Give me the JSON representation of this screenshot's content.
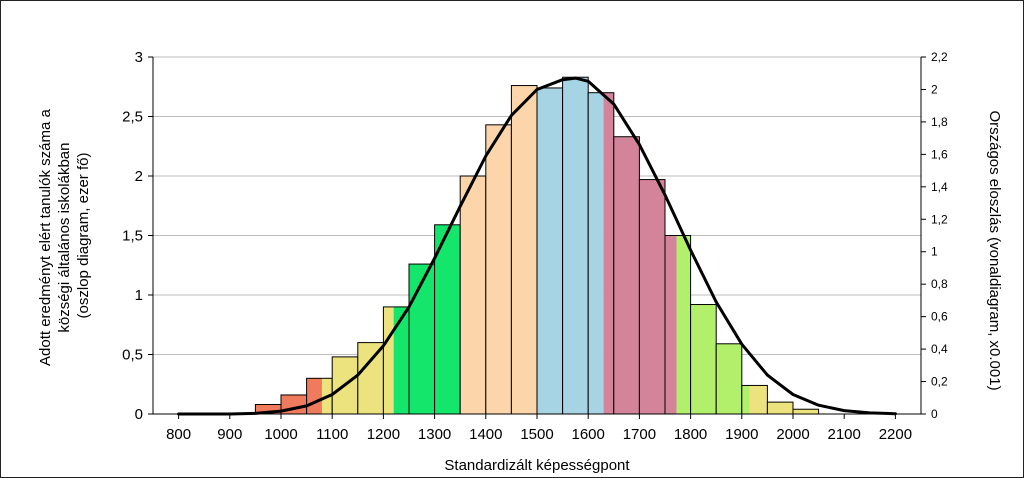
{
  "chart_data": {
    "type": "bar",
    "xlabel": "Standardizált képességpont",
    "ylabel_left": [
      "Adott eredményt elért tanulók száma a",
      "községi általános iskolákban",
      "(oszlop diagram, ezer fő)"
    ],
    "ylabel_right": "Országos eloszlás (vonaldiagram, x0.001)",
    "xlim": [
      750,
      2250
    ],
    "ylim_left": [
      0,
      3
    ],
    "ylim_right": [
      0,
      2.2
    ],
    "x_ticks": [
      "800",
      "900",
      "1000",
      "1100",
      "1200",
      "1300",
      "1400",
      "1500",
      "1600",
      "1700",
      "1800",
      "1900",
      "2000",
      "2100",
      "2200"
    ],
    "left_ticks": [
      "0",
      "0,5",
      "1",
      "1,5",
      "2",
      "2,5",
      "3"
    ],
    "right_ticks": [
      "0",
      "0,2",
      "0,4",
      "0,6",
      "0,8",
      "1",
      "1,2",
      "1,4",
      "1,6",
      "1,8",
      "2",
      "2,2"
    ],
    "grid": true,
    "bin_width": 50,
    "colors": {
      "red": "#f07a5c",
      "yellow": "#ece37e",
      "green": "#14e66c",
      "peach": "#fcd5ab",
      "blue": "#a6d4e4",
      "rose": "#d4849a",
      "lightgreen": "#b2f06b"
    },
    "bars": [
      {
        "x": 975,
        "value": 0.08,
        "segments": [
          {
            "color": "red",
            "to": 1
          }
        ]
      },
      {
        "x": 1025,
        "value": 0.16,
        "segments": [
          {
            "color": "red",
            "to": 1
          }
        ]
      },
      {
        "x": 1075,
        "value": 0.3,
        "segments": [
          {
            "color": "red",
            "to": 0.6
          },
          {
            "color": "yellow",
            "to": 1
          }
        ]
      },
      {
        "x": 1125,
        "value": 0.48,
        "segments": [
          {
            "color": "yellow",
            "to": 1
          }
        ]
      },
      {
        "x": 1175,
        "value": 0.6,
        "segments": [
          {
            "color": "yellow",
            "to": 1
          }
        ]
      },
      {
        "x": 1225,
        "value": 0.9,
        "segments": [
          {
            "color": "yellow",
            "to": 0.4
          },
          {
            "color": "green",
            "to": 1
          }
        ]
      },
      {
        "x": 1275,
        "value": 1.26,
        "segments": [
          {
            "color": "green",
            "to": 1
          }
        ]
      },
      {
        "x": 1325,
        "value": 1.59,
        "segments": [
          {
            "color": "green",
            "to": 1
          }
        ]
      },
      {
        "x": 1375,
        "value": 2.0,
        "segments": [
          {
            "color": "peach",
            "to": 1
          }
        ]
      },
      {
        "x": 1425,
        "value": 2.43,
        "segments": [
          {
            "color": "peach",
            "to": 1
          }
        ]
      },
      {
        "x": 1475,
        "value": 2.76,
        "segments": [
          {
            "color": "peach",
            "to": 1
          }
        ]
      },
      {
        "x": 1525,
        "value": 2.74,
        "segments": [
          {
            "color": "blue",
            "to": 1
          }
        ]
      },
      {
        "x": 1575,
        "value": 2.83,
        "segments": [
          {
            "color": "blue",
            "to": 1
          }
        ]
      },
      {
        "x": 1625,
        "value": 2.7,
        "segments": [
          {
            "color": "blue",
            "to": 0.6
          },
          {
            "color": "rose",
            "to": 1
          }
        ]
      },
      {
        "x": 1675,
        "value": 2.33,
        "segments": [
          {
            "color": "rose",
            "to": 1
          }
        ]
      },
      {
        "x": 1725,
        "value": 1.97,
        "segments": [
          {
            "color": "rose",
            "to": 1
          }
        ]
      },
      {
        "x": 1775,
        "value": 1.5,
        "segments": [
          {
            "color": "rose",
            "to": 0.45
          },
          {
            "color": "lightgreen",
            "to": 1
          }
        ]
      },
      {
        "x": 1825,
        "value": 0.92,
        "segments": [
          {
            "color": "lightgreen",
            "to": 1
          }
        ]
      },
      {
        "x": 1875,
        "value": 0.59,
        "segments": [
          {
            "color": "lightgreen",
            "to": 1
          }
        ]
      },
      {
        "x": 1925,
        "value": 0.24,
        "segments": [
          {
            "color": "lightgreen",
            "to": 0.3
          },
          {
            "color": "yellow",
            "to": 1
          }
        ]
      },
      {
        "x": 1975,
        "value": 0.1,
        "segments": [
          {
            "color": "yellow",
            "to": 1
          }
        ]
      },
      {
        "x": 2025,
        "value": 0.04,
        "segments": [
          {
            "color": "yellow",
            "to": 1
          }
        ]
      }
    ],
    "curve": {
      "axis": "right",
      "x": [
        800,
        850,
        900,
        950,
        1000,
        1050,
        1100,
        1150,
        1200,
        1250,
        1300,
        1350,
        1400,
        1450,
        1500,
        1550,
        1575,
        1600,
        1650,
        1700,
        1750,
        1800,
        1850,
        1900,
        1950,
        2000,
        2050,
        2100,
        2150,
        2200
      ],
      "y": [
        0.0,
        0.0,
        0.0,
        0.004,
        0.018,
        0.05,
        0.12,
        0.24,
        0.42,
        0.66,
        0.96,
        1.28,
        1.59,
        1.84,
        2.0,
        2.06,
        2.07,
        2.05,
        1.91,
        1.66,
        1.35,
        1.01,
        0.69,
        0.43,
        0.24,
        0.12,
        0.054,
        0.021,
        0.007,
        0.002
      ]
    }
  }
}
